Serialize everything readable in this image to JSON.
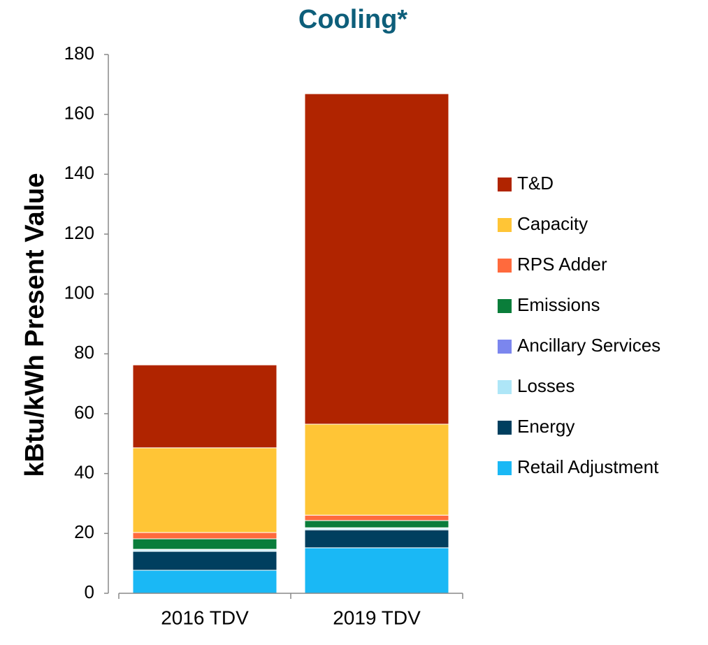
{
  "chart_data": {
    "type": "stacked_bar",
    "title": "Cooling*",
    "y_label": "kBtu/kWh Present Value",
    "categories": [
      "2016 TDV",
      "2019 TDV"
    ],
    "series": [
      {
        "name": "Retail Adjustment",
        "color": "#1ab8f5",
        "values": [
          7.7,
          15.2
        ]
      },
      {
        "name": "Energy",
        "color": "#003f5f",
        "values": [
          6.3,
          6.0
        ]
      },
      {
        "name": "Losses",
        "color": "#aee6f7",
        "values": [
          0.5,
          0.5
        ]
      },
      {
        "name": "Ancillary Services",
        "color": "#7b86ee",
        "values": [
          0.2,
          0.2
        ]
      },
      {
        "name": "Emissions",
        "color": "#0a7d3a",
        "values": [
          3.5,
          2.4
        ]
      },
      {
        "name": "RPS Adder",
        "color": "#ff6a3d",
        "values": [
          2.1,
          1.8
        ]
      },
      {
        "name": "Capacity",
        "color": "#ffc536",
        "values": [
          28.3,
          30.4
        ]
      },
      {
        "name": "T&D",
        "color": "#b02400",
        "values": [
          27.7,
          110.4
        ]
      }
    ],
    "ylim": [
      0,
      180
    ],
    "yticks": [
      0,
      20,
      40,
      60,
      80,
      100,
      120,
      140,
      160,
      180
    ],
    "grid": false,
    "legend": "right"
  }
}
